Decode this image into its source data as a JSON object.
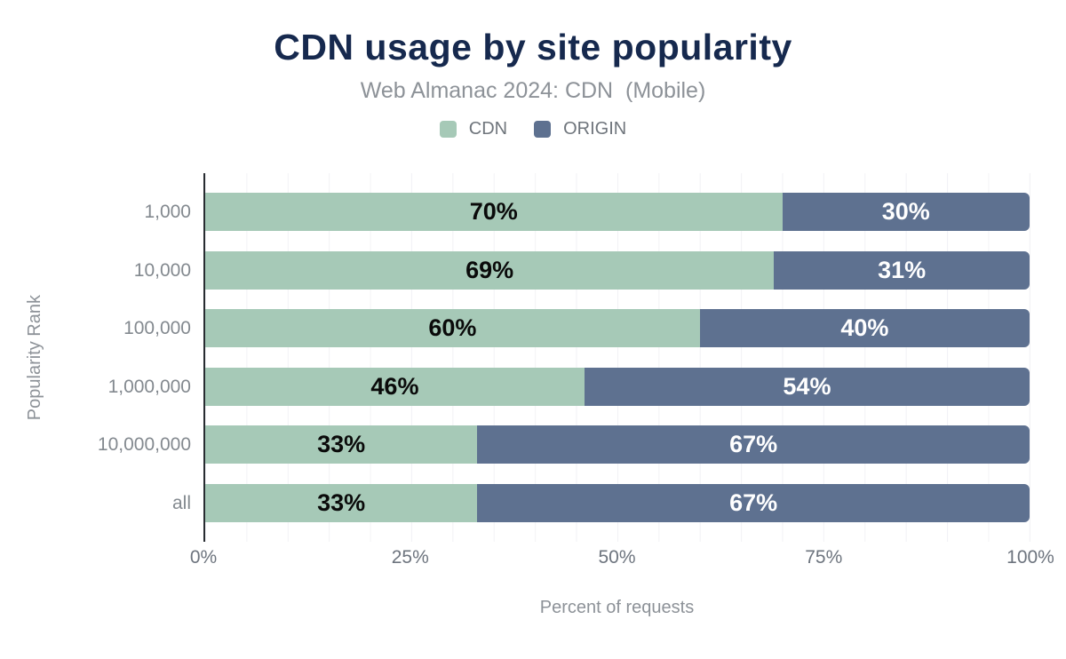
{
  "title": "CDN usage by site popularity",
  "subtitle": "Web Almanac 2024: CDN  (Mobile)",
  "legend": [
    {
      "label": "CDN",
      "color": "#a6c9b7"
    },
    {
      "label": "ORIGIN",
      "color": "#5e7190"
    }
  ],
  "colors": {
    "cdn": "#a6c9b7",
    "origin": "#5e7190",
    "title_text": "#16294e",
    "muted_text": "#8d9298",
    "tick_text": "#6d747e",
    "axis_line": "#282c31",
    "gridline": "#f2f2f5",
    "label_on_cdn": "#0a0a0a",
    "label_on_origin": "#ffffff"
  },
  "chart_data": {
    "type": "bar",
    "orientation": "horizontal",
    "stacked": true,
    "title": "CDN usage by site popularity",
    "subtitle": "Web Almanac 2024: CDN  (Mobile)",
    "xlabel": "Percent of requests",
    "ylabel": "Popularity Rank",
    "categories": [
      "1,000",
      "10,000",
      "100,000",
      "1,000,000",
      "10,000,000",
      "all"
    ],
    "series": [
      {
        "name": "CDN",
        "values": [
          70,
          69,
          60,
          46,
          33,
          33
        ],
        "labels": [
          "70%",
          "69%",
          "60%",
          "46%",
          "33%",
          "33%"
        ]
      },
      {
        "name": "ORIGIN",
        "values": [
          30,
          31,
          40,
          54,
          67,
          67
        ],
        "labels": [
          "30%",
          "31%",
          "40%",
          "54%",
          "67%",
          "67%"
        ]
      }
    ],
    "xticks": [
      "0%",
      "25%",
      "50%",
      "75%",
      "100%"
    ],
    "xtick_positions": [
      0,
      25,
      50,
      75,
      100
    ],
    "xlim": [
      0,
      100
    ],
    "grid": "vertical gridlines every 5%",
    "legend_position": "top"
  }
}
